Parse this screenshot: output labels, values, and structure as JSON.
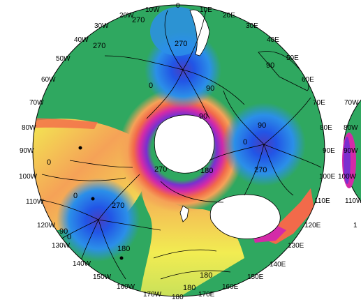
{
  "map": {
    "projection": "south-polar-stereographic",
    "colors": {
      "background_green": "#2fa860",
      "pole_center": "#4a3fbf",
      "pole_inner": "#2255e6",
      "pole_outer": "#2b8fe8",
      "land_white": "#ffffff",
      "warm_yellow": "#f2ec52",
      "warm_orange": "#f5a257",
      "warm_red": "#f26a4a",
      "magenta": "#d42aa8",
      "violet": "#7b2fcf",
      "contour_line": "#000000",
      "coast_line": "#000000"
    },
    "longitude_labels": [
      {
        "id": "0",
        "text": "0"
      },
      {
        "id": "10E",
        "text": "10E"
      },
      {
        "id": "20E",
        "text": "20E"
      },
      {
        "id": "30E",
        "text": "30E"
      },
      {
        "id": "40E",
        "text": "40E"
      },
      {
        "id": "50E",
        "text": "50E"
      },
      {
        "id": "60E",
        "text": "60E"
      },
      {
        "id": "70E",
        "text": "70E"
      },
      {
        "id": "80E",
        "text": "80E"
      },
      {
        "id": "90E",
        "text": "90E"
      },
      {
        "id": "100E",
        "text": "100E"
      },
      {
        "id": "110E",
        "text": "110E"
      },
      {
        "id": "120E",
        "text": "120E"
      },
      {
        "id": "130E",
        "text": "130E"
      },
      {
        "id": "140E",
        "text": "140E"
      },
      {
        "id": "150E",
        "text": "150E"
      },
      {
        "id": "160E",
        "text": "160E"
      },
      {
        "id": "170E",
        "text": "170E"
      },
      {
        "id": "180",
        "text": "180"
      },
      {
        "id": "170W",
        "text": "170W"
      },
      {
        "id": "160W",
        "text": "160W"
      },
      {
        "id": "150W",
        "text": "150W"
      },
      {
        "id": "140W",
        "text": "140W"
      },
      {
        "id": "130W",
        "text": "130W"
      },
      {
        "id": "120W",
        "text": "120W"
      },
      {
        "id": "110W",
        "text": "110W"
      },
      {
        "id": "100W",
        "text": "100W"
      },
      {
        "id": "90W",
        "text": "90W"
      },
      {
        "id": "80W",
        "text": "80W"
      },
      {
        "id": "70W",
        "text": "70W"
      },
      {
        "id": "60W",
        "text": "60W"
      },
      {
        "id": "50W",
        "text": "50W"
      },
      {
        "id": "40W",
        "text": "40W"
      },
      {
        "id": "30W",
        "text": "30W"
      },
      {
        "id": "20W",
        "text": "20W"
      },
      {
        "id": "10W",
        "text": "10W"
      }
    ],
    "contour_labels": [
      {
        "id": "c1",
        "text": "270"
      },
      {
        "id": "c2",
        "text": "270"
      },
      {
        "id": "c3",
        "text": "270"
      },
      {
        "id": "c4",
        "text": "0"
      },
      {
        "id": "c5",
        "text": "90"
      },
      {
        "id": "c6",
        "text": "90"
      },
      {
        "id": "c7",
        "text": "90"
      },
      {
        "id": "c8",
        "text": "90"
      },
      {
        "id": "c9",
        "text": "0"
      },
      {
        "id": "c10",
        "text": "0"
      },
      {
        "id": "c11",
        "text": "270"
      },
      {
        "id": "c12",
        "text": "180"
      },
      {
        "id": "c13",
        "text": "270"
      },
      {
        "id": "c14",
        "text": "270"
      },
      {
        "id": "c15",
        "text": "0"
      },
      {
        "id": "c16",
        "text": "90"
      },
      {
        "id": "c17",
        "text": "180"
      },
      {
        "id": "c18",
        "text": "180"
      },
      {
        "id": "c19",
        "text": "180"
      },
      {
        "id": "c20",
        "text": "0"
      }
    ],
    "partial_right_labels": [
      {
        "id": "70W",
        "text": "70W"
      },
      {
        "id": "80W",
        "text": "80W"
      },
      {
        "id": "90W",
        "text": "90W"
      },
      {
        "id": "100W",
        "text": "100W"
      },
      {
        "id": "110W",
        "text": "110W"
      },
      {
        "id": "1",
        "text": "1"
      }
    ]
  }
}
